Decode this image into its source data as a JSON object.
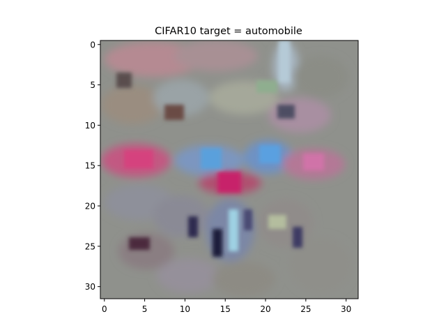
{
  "figure": {
    "title": "CIFAR10 target = automobile"
  },
  "axes": {
    "x_ticks": [
      "0",
      "5",
      "10",
      "15",
      "20",
      "25",
      "30"
    ],
    "y_ticks": [
      "0",
      "5",
      "10",
      "15",
      "20",
      "25",
      "30"
    ]
  },
  "image": {
    "grid_size": 32
  }
}
